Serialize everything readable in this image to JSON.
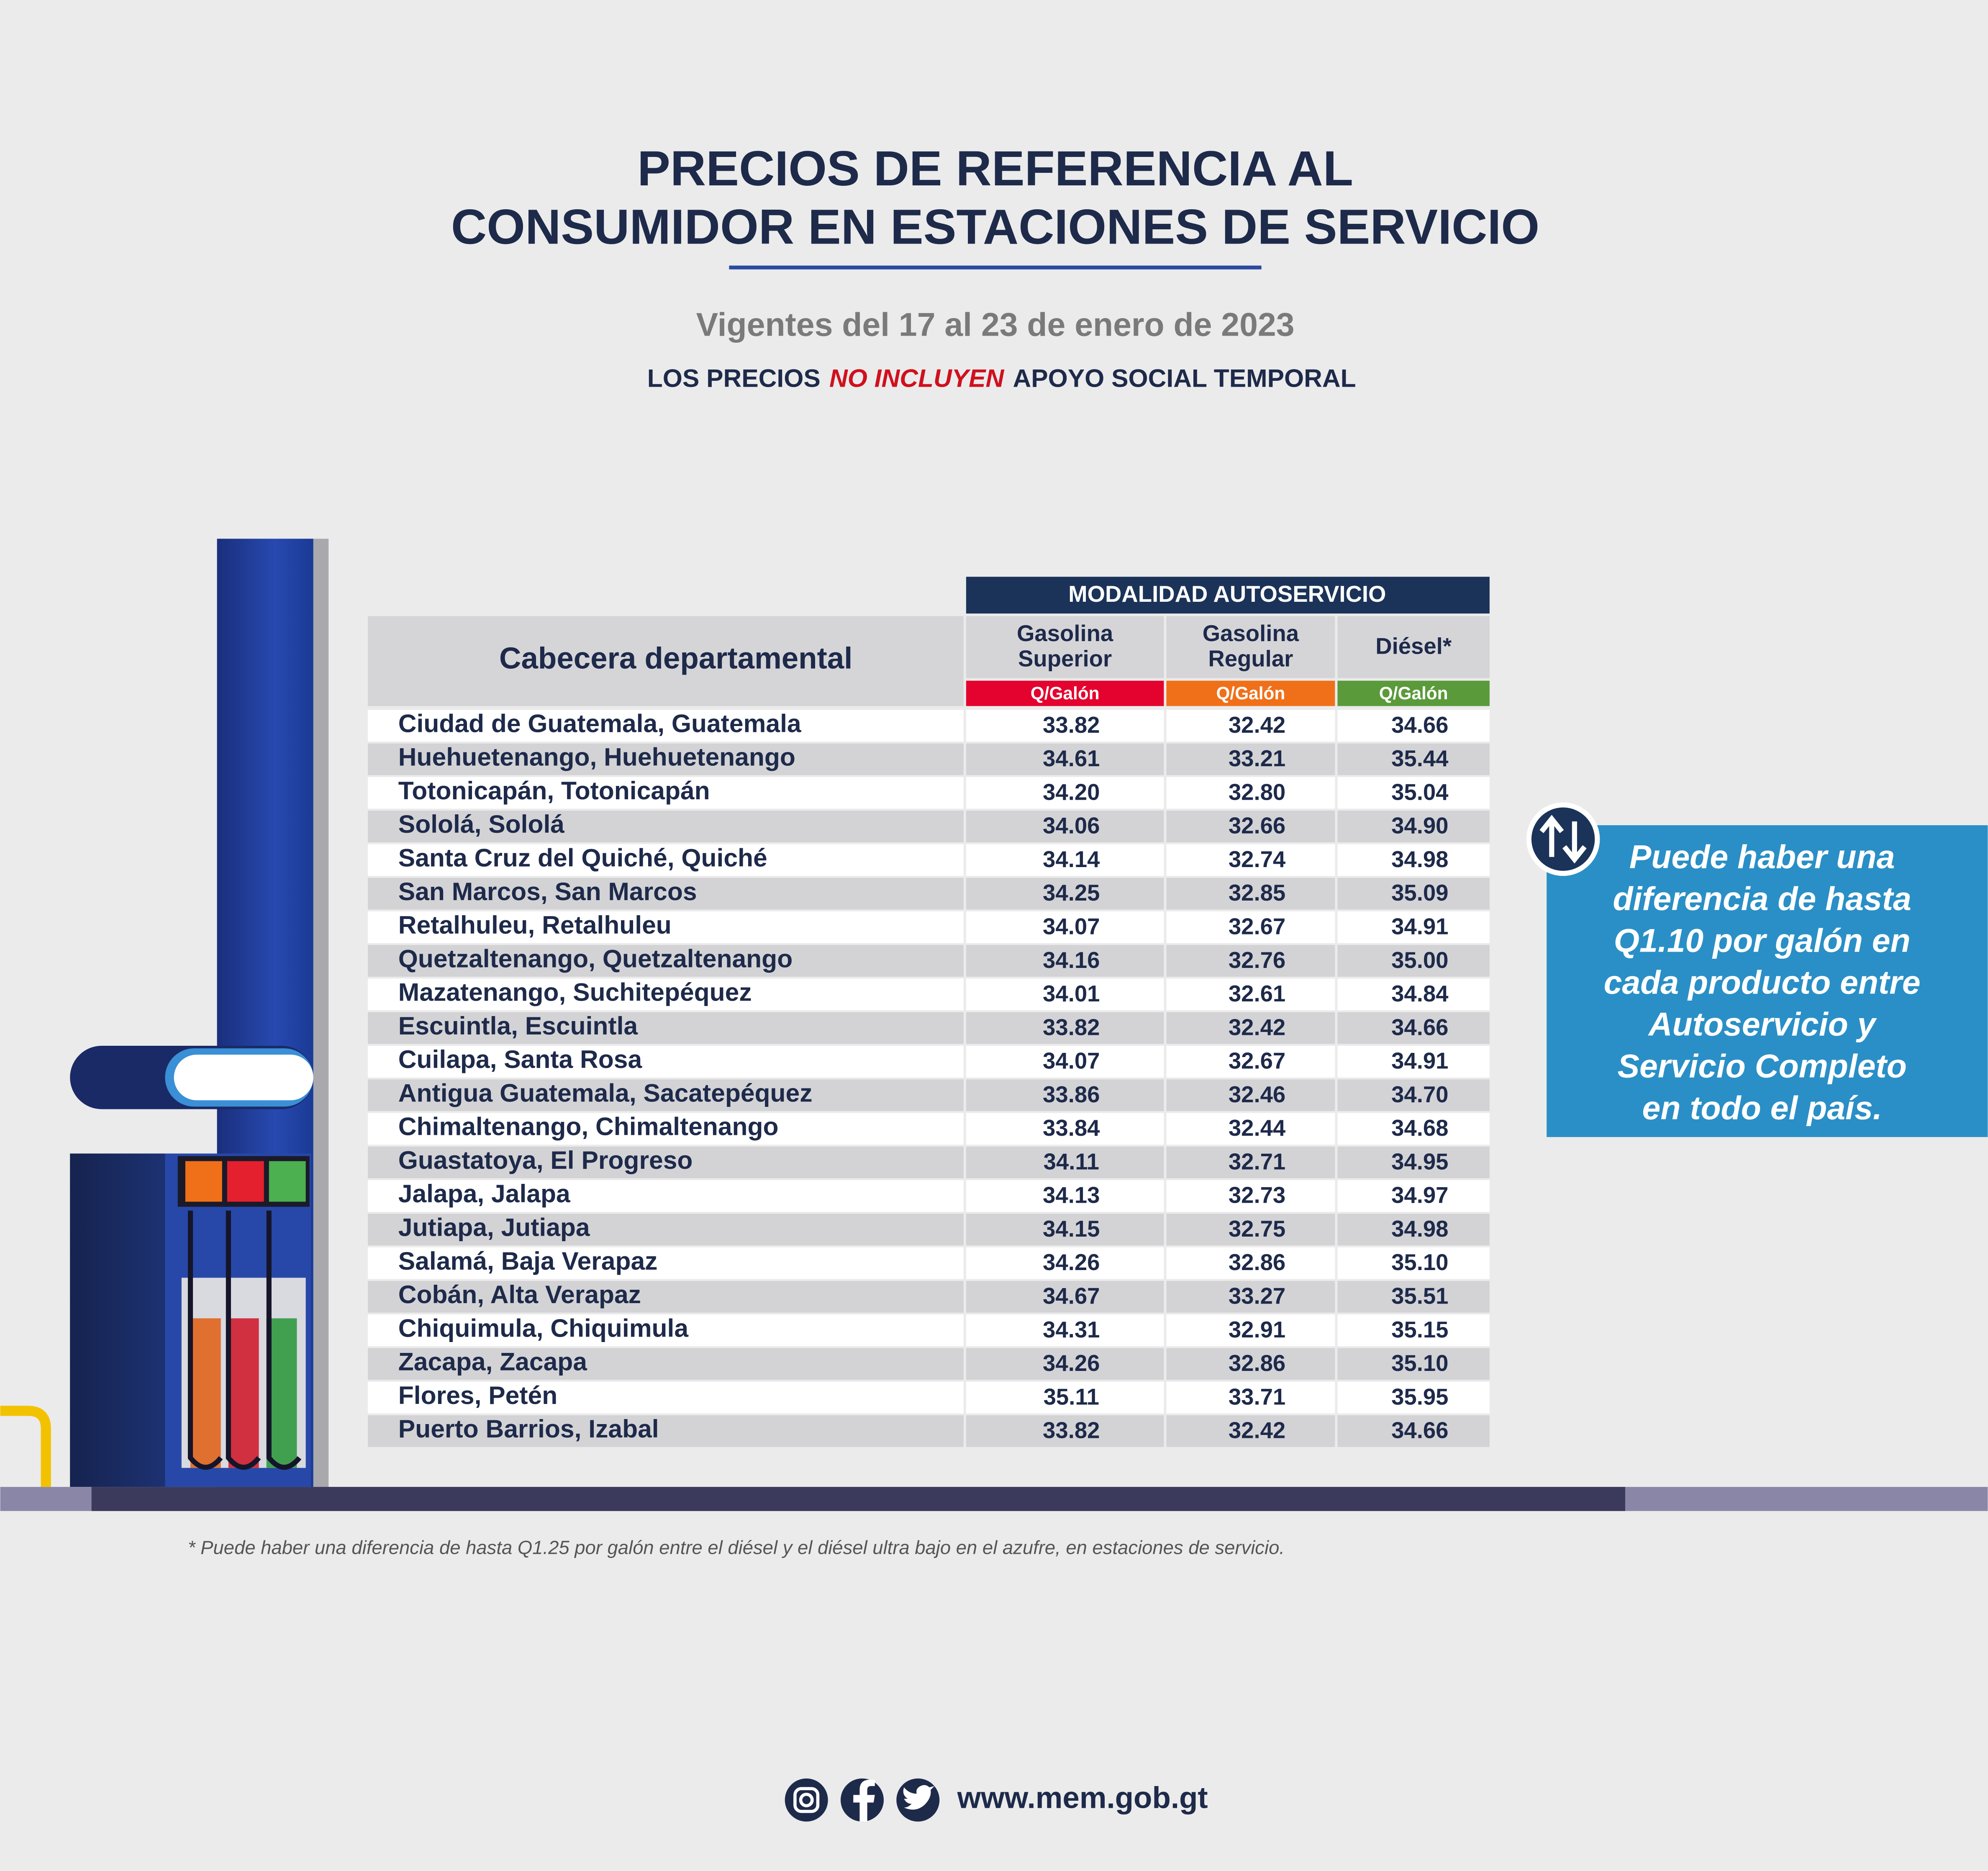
{
  "header": {
    "title_lines": [
      "PRECIOS DE REFERENCIA AL",
      "CONSUMIDOR EN ESTACIONES DE SERVICIO"
    ],
    "subtitle": "Vigentes del 17 al 23 de enero de 2023",
    "notice": {
      "before": "LOS PRECIOS",
      "emphasis": "NO INCLUYEN",
      "after": "APOYO SOCIAL TEMPORAL"
    }
  },
  "table": {
    "group_header": "MODALIDAD AUTOSERVICIO",
    "row_header": "Cabecera departamental",
    "columns": [
      {
        "name_lines": [
          "Gasolina",
          "Superior"
        ],
        "unit": "Q/Galón"
      },
      {
        "name_lines": [
          "Gasolina",
          "Regular"
        ],
        "unit": "Q/Galón"
      },
      {
        "name_lines": [
          "Diésel*"
        ],
        "unit": "Q/Galón"
      }
    ],
    "rows": [
      [
        "Ciudad de Guatemala, Guatemala",
        "33.82",
        "32.42",
        "34.66"
      ],
      [
        "Huehuetenango, Huehuetenango",
        "34.61",
        "33.21",
        "35.44"
      ],
      [
        "Totonicapán, Totonicapán",
        "34.20",
        "32.80",
        "35.04"
      ],
      [
        "Sololá, Sololá",
        "34.06",
        "32.66",
        "34.90"
      ],
      [
        "Santa Cruz del Quiché, Quiché",
        "34.14",
        "32.74",
        "34.98"
      ],
      [
        "San Marcos, San Marcos",
        "34.25",
        "32.85",
        "35.09"
      ],
      [
        "Retalhuleu, Retalhuleu",
        "34.07",
        "32.67",
        "34.91"
      ],
      [
        "Quetzaltenango, Quetzaltenango",
        "34.16",
        "32.76",
        "35.00"
      ],
      [
        "Mazatenango, Suchitepéquez",
        "34.01",
        "32.61",
        "34.84"
      ],
      [
        "Escuintla, Escuintla",
        "33.82",
        "32.42",
        "34.66"
      ],
      [
        "Cuilapa, Santa Rosa",
        "34.07",
        "32.67",
        "34.91"
      ],
      [
        "Antigua Guatemala, Sacatepéquez",
        "33.86",
        "32.46",
        "34.70"
      ],
      [
        "Chimaltenango, Chimaltenango",
        "33.84",
        "32.44",
        "34.68"
      ],
      [
        "Guastatoya, El Progreso",
        "34.11",
        "32.71",
        "34.95"
      ],
      [
        "Jalapa, Jalapa",
        "34.13",
        "32.73",
        "34.97"
      ],
      [
        "Jutiapa, Jutiapa",
        "34.15",
        "32.75",
        "34.98"
      ],
      [
        "Salamá, Baja Verapaz",
        "34.26",
        "32.86",
        "35.10"
      ],
      [
        "Cobán, Alta Verapaz",
        "34.67",
        "33.27",
        "35.51"
      ],
      [
        "Chiquimula, Chiquimula",
        "34.31",
        "32.91",
        "35.15"
      ],
      [
        "Zacapa, Zacapa",
        "34.26",
        "32.86",
        "35.10"
      ],
      [
        "Flores, Petén",
        "35.11",
        "33.71",
        "35.95"
      ],
      [
        "Puerto Barrios, Izabal",
        "33.82",
        "32.42",
        "34.66"
      ]
    ]
  },
  "callout": {
    "lines": [
      "Puede haber una",
      "diferencia de hasta",
      "Q1.10 por galón en",
      "cada producto entre",
      "Autoservicio y",
      "Servicio Completo",
      "en todo el país."
    ]
  },
  "footnote": "* Puede haber una diferencia de hasta Q1.25 por galón entre el diésel y el diésel ultra bajo en el azufre, en estaciones de servicio.",
  "footer": {
    "website": "www.mem.gob.gt"
  }
}
